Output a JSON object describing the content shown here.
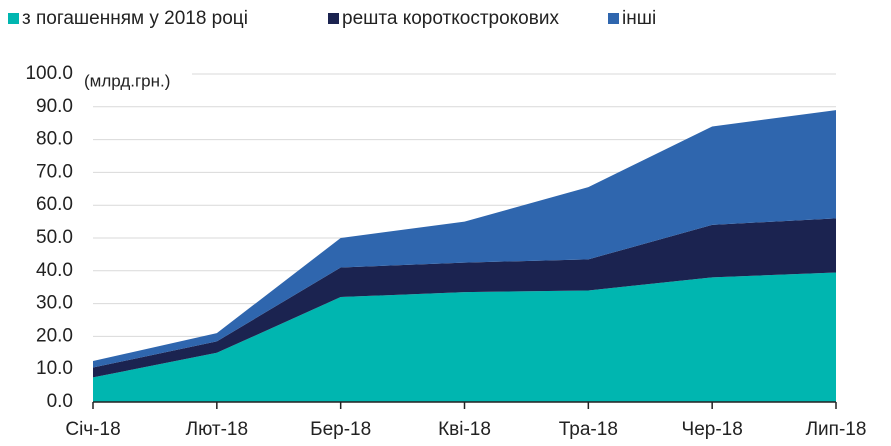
{
  "chart_data": {
    "type": "stacked_area",
    "y_unit_label": "(млрд.грн.)",
    "categories": [
      "Січ-18",
      "Лют-18",
      "Бер-18",
      "Кві-18",
      "Тра-18",
      "Чер-18",
      "Лип-18"
    ],
    "series": [
      {
        "name": "з погашенням у 2018 році",
        "color": "#00b6b0",
        "values": [
          7.5,
          15,
          32,
          33.5,
          34,
          38,
          39.5
        ]
      },
      {
        "name": "решта короткострокових",
        "color": "#1b2350",
        "values": [
          3,
          3.5,
          9,
          9,
          9.5,
          16,
          16.5
        ]
      },
      {
        "name": "інші",
        "color": "#2f66ae",
        "values": [
          2,
          2.5,
          9,
          12.5,
          22,
          30,
          33
        ]
      }
    ],
    "ylim": [
      0,
      100
    ],
    "yticks": [
      {
        "value": 0,
        "label": "0.0"
      },
      {
        "value": 10,
        "label": "10.0"
      },
      {
        "value": 20,
        "label": "20.0"
      },
      {
        "value": 30,
        "label": "30.0"
      },
      {
        "value": 40,
        "label": "40.0"
      },
      {
        "value": 50,
        "label": "50.0"
      },
      {
        "value": 60,
        "label": "60.0"
      },
      {
        "value": 70,
        "label": "70.0"
      },
      {
        "value": 80,
        "label": "80.0"
      },
      {
        "value": 90,
        "label": "90.0"
      },
      {
        "value": 100,
        "label": "100.0"
      }
    ],
    "grid": true,
    "legend": "top"
  }
}
